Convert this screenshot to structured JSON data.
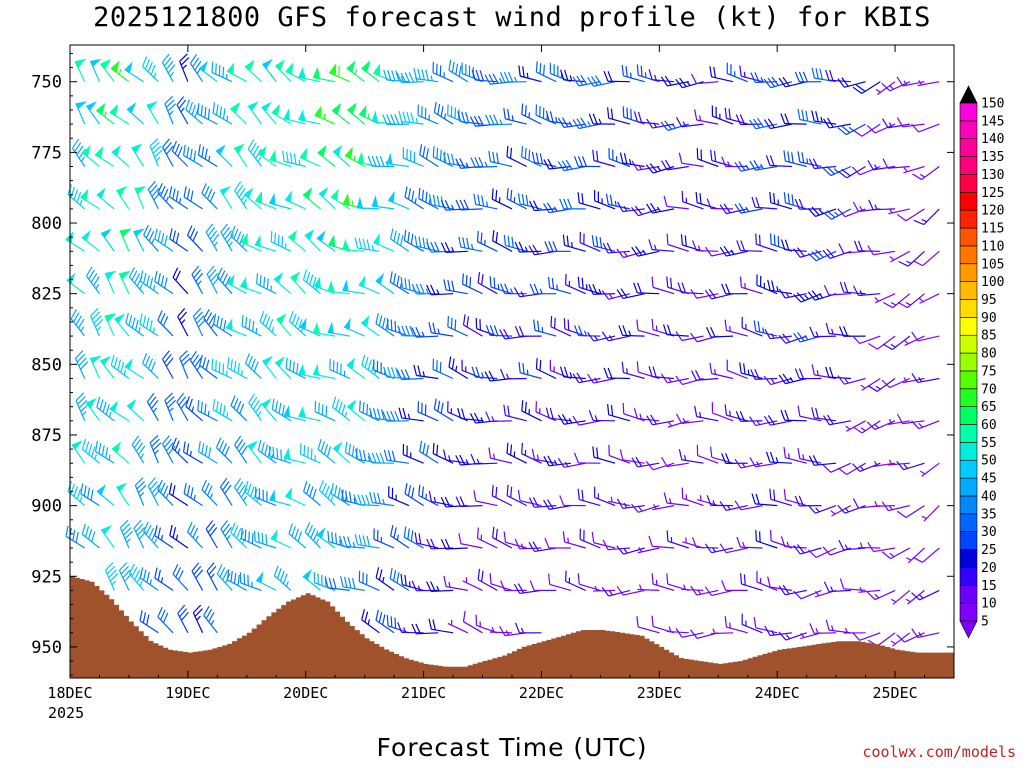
{
  "chart_data": {
    "type": "wind-barb profile",
    "title": "2025121800 GFS forecast wind profile (kt) for KBIS",
    "xlabel": "Forecast Time (UTC)",
    "ylabel": "",
    "credit": "coolwx.com/models",
    "year_label": "2025",
    "x_tick_labels": [
      "18DEC",
      "19DEC",
      "20DEC",
      "21DEC",
      "22DEC",
      "23DEC",
      "24DEC",
      "25DEC"
    ],
    "x_range_days": [
      0,
      7.5
    ],
    "y_tick_labels": [
      "750",
      "775",
      "800",
      "825",
      "850",
      "875",
      "900",
      "925",
      "950"
    ],
    "y_ticks": [
      750,
      775,
      800,
      825,
      850,
      875,
      900,
      925,
      950
    ],
    "y_range_hpa": [
      737,
      961
    ],
    "pressure_levels": [
      750,
      765,
      780,
      795,
      810,
      825,
      840,
      855,
      870,
      885,
      900,
      915,
      930,
      945
    ],
    "time_step_hours": 3,
    "colorbar": {
      "levels": [
        "5",
        "10",
        "15",
        "20",
        "25",
        "30",
        "35",
        "40",
        "45",
        "50",
        "55",
        "60",
        "65",
        "70",
        "75",
        "80",
        "85",
        "90",
        "95",
        "100",
        "105",
        "110",
        "115",
        "120",
        "125",
        "130",
        "135",
        "140",
        "145",
        "150"
      ],
      "colors": [
        "#8000ff",
        "#6a00ff",
        "#3300ff",
        "#0000dd",
        "#0044ff",
        "#0066ff",
        "#0088ff",
        "#00aaff",
        "#00ccff",
        "#00eedd",
        "#00ffaa",
        "#00ff66",
        "#22ff22",
        "#55ff00",
        "#99ff00",
        "#ccff00",
        "#ffff00",
        "#ffdd00",
        "#ffbb00",
        "#ff9900",
        "#ff7700",
        "#ff5500",
        "#ff2200",
        "#ff0000",
        "#ff0044",
        "#ff0077",
        "#ff0099",
        "#ff00bb",
        "#ff00dd",
        "#ff00ff"
      ]
    },
    "surface_pressure_hpa": [
      {
        "t": 0.0,
        "p": 925
      },
      {
        "t": 0.17,
        "p": 927
      },
      {
        "t": 0.33,
        "p": 933
      },
      {
        "t": 0.5,
        "p": 941
      },
      {
        "t": 0.67,
        "p": 948
      },
      {
        "t": 0.83,
        "p": 951
      },
      {
        "t": 1.0,
        "p": 952
      },
      {
        "t": 1.17,
        "p": 951
      },
      {
        "t": 1.33,
        "p": 949
      },
      {
        "t": 1.5,
        "p": 945
      },
      {
        "t": 1.67,
        "p": 939
      },
      {
        "t": 1.83,
        "p": 934
      },
      {
        "t": 2.0,
        "p": 931
      },
      {
        "t": 2.17,
        "p": 934
      },
      {
        "t": 2.33,
        "p": 941
      },
      {
        "t": 2.5,
        "p": 947
      },
      {
        "t": 2.67,
        "p": 951
      },
      {
        "t": 2.83,
        "p": 954
      },
      {
        "t": 3.0,
        "p": 956
      },
      {
        "t": 3.17,
        "p": 957
      },
      {
        "t": 3.33,
        "p": 957
      },
      {
        "t": 3.5,
        "p": 955
      },
      {
        "t": 3.67,
        "p": 953
      },
      {
        "t": 3.83,
        "p": 950
      },
      {
        "t": 4.0,
        "p": 948
      },
      {
        "t": 4.17,
        "p": 946
      },
      {
        "t": 4.33,
        "p": 944
      },
      {
        "t": 4.5,
        "p": 944
      },
      {
        "t": 4.67,
        "p": 945
      },
      {
        "t": 4.83,
        "p": 946
      },
      {
        "t": 5.0,
        "p": 950
      },
      {
        "t": 5.17,
        "p": 954
      },
      {
        "t": 5.33,
        "p": 955
      },
      {
        "t": 5.5,
        "p": 956
      },
      {
        "t": 5.67,
        "p": 955
      },
      {
        "t": 5.83,
        "p": 953
      },
      {
        "t": 6.0,
        "p": 951
      },
      {
        "t": 6.17,
        "p": 950
      },
      {
        "t": 6.33,
        "p": 949
      },
      {
        "t": 6.5,
        "p": 948
      },
      {
        "t": 6.67,
        "p": 948
      },
      {
        "t": 6.83,
        "p": 949
      },
      {
        "t": 7.0,
        "p": 951
      },
      {
        "t": 7.17,
        "p": 952
      },
      {
        "t": 7.33,
        "p": 952
      },
      {
        "t": 7.5,
        "p": 952
      }
    ],
    "wind_speed_kt_by_day": [
      {
        "day": 0.0,
        "upper": 48,
        "lower": 40
      },
      {
        "day": 0.5,
        "upper": 62,
        "lower": 45
      },
      {
        "day": 1.0,
        "upper": 30,
        "lower": 25
      },
      {
        "day": 1.5,
        "upper": 55,
        "lower": 38
      },
      {
        "day": 2.0,
        "upper": 55,
        "lower": 45
      },
      {
        "day": 2.5,
        "upper": 68,
        "lower": 32
      },
      {
        "day": 3.0,
        "upper": 42,
        "lower": 22
      },
      {
        "day": 3.5,
        "upper": 35,
        "lower": 10
      },
      {
        "day": 4.0,
        "upper": 30,
        "lower": 12
      },
      {
        "day": 4.5,
        "upper": 30,
        "lower": 10
      },
      {
        "day": 5.0,
        "upper": 22,
        "lower": 8
      },
      {
        "day": 5.5,
        "upper": 18,
        "lower": 8
      },
      {
        "day": 6.0,
        "upper": 25,
        "lower": 15
      },
      {
        "day": 6.5,
        "upper": 28,
        "lower": 10
      },
      {
        "day": 7.0,
        "upper": 12,
        "lower": 8
      },
      {
        "day": 7.5,
        "upper": 10,
        "lower": 10
      }
    ],
    "wind_direction_deg_by_day": [
      {
        "day": 0.0,
        "dir": 320
      },
      {
        "day": 1.0,
        "dir": 320
      },
      {
        "day": 2.0,
        "dir": 300
      },
      {
        "day": 3.0,
        "dir": 285
      },
      {
        "day": 4.0,
        "dir": 280
      },
      {
        "day": 5.0,
        "dir": 270
      },
      {
        "day": 6.0,
        "dir": 275
      },
      {
        "day": 7.0,
        "dir": 250
      },
      {
        "day": 7.5,
        "dir": 240
      }
    ]
  }
}
